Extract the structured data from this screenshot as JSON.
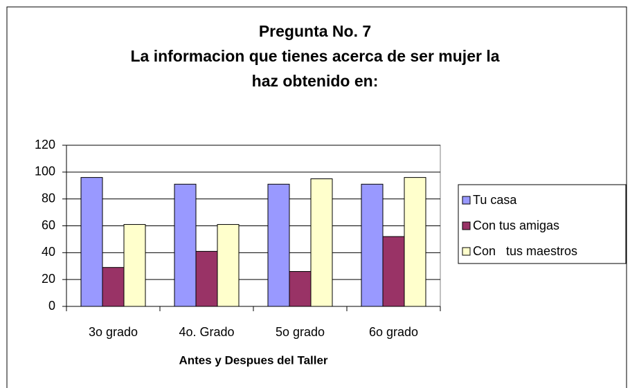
{
  "chart_data": {
    "type": "bar",
    "title": [
      "Pregunta No. 7",
      "La informacion que tienes acerca de ser mujer la",
      "haz obtenido en:"
    ],
    "x_label": "Antes y Despues del Taller",
    "categories": [
      "3o grado",
      "4o. Grado",
      "5o grado",
      "6o grado"
    ],
    "series": [
      {
        "name": "Tu casa",
        "color": "#9999ff",
        "values": [
          96,
          91,
          91,
          91
        ]
      },
      {
        "name": "Con tus amigas",
        "color": "#993366",
        "values": [
          29,
          41,
          26,
          52
        ]
      },
      {
        "name": "Con   tus maestros",
        "color": "#ffffcc",
        "values": [
          61,
          61,
          95,
          96
        ]
      }
    ],
    "ylim": [
      0,
      120
    ],
    "yticks": [
      0,
      20,
      40,
      60,
      80,
      100,
      120
    ],
    "grid": true,
    "legend": "right"
  }
}
